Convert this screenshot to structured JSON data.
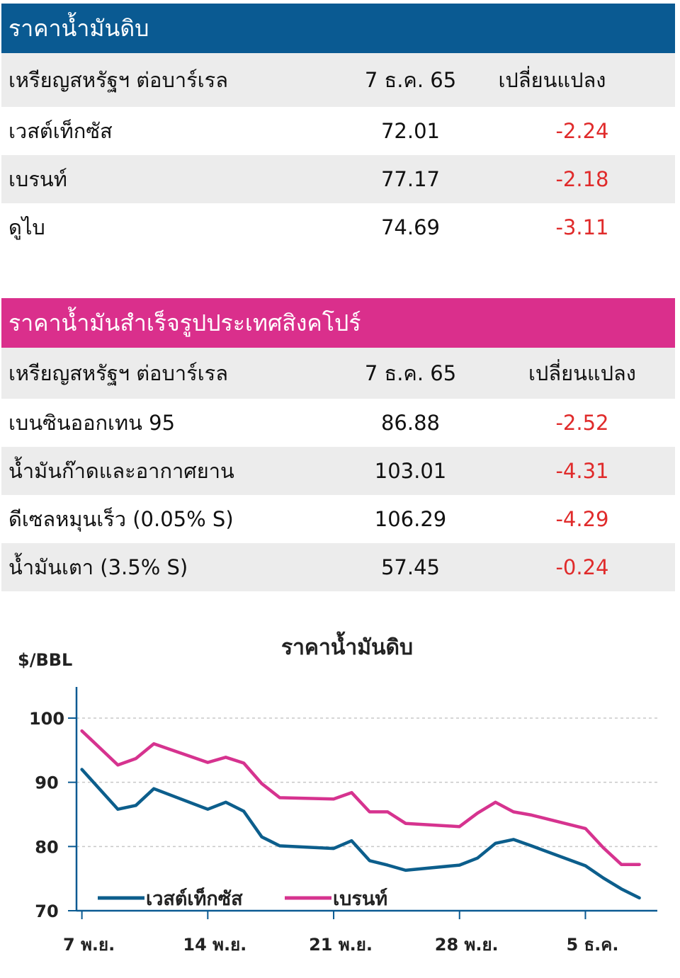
{
  "crude_table": {
    "title": "ราคาน้ำมันดิบ",
    "col_name": "เหรียญสหรัฐฯ ต่อบาร์เรล",
    "col_date": "7 ธ.ค. 65",
    "col_change": "เปลี่ยนแปลง",
    "rows": [
      {
        "name": "เวสต์เท็กซัส",
        "value": "72.01",
        "change": "-2.24"
      },
      {
        "name": "เบรนท์",
        "value": "77.17",
        "change": "-2.18"
      },
      {
        "name": "ดูไบ",
        "value": "74.69",
        "change": "-3.11"
      }
    ]
  },
  "refined_table": {
    "title": "ราคาน้ำมันสำเร็จรูปประเทศสิงคโปร์",
    "col_name": "เหรียญสหรัฐฯ ต่อบาร์เรล",
    "col_date": "7 ธ.ค. 65",
    "col_change": "เปลี่ยนแปลง",
    "rows": [
      {
        "name": "เบนซินออกเทน 95",
        "value": "86.88",
        "change": "-2.52"
      },
      {
        "name": "น้ำมันก๊าดและอากาศยาน",
        "value": "103.01",
        "change": "-4.31"
      },
      {
        "name": "ดีเซลหมุนเร็ว (0.05% S)",
        "value": "106.29",
        "change": "-4.29"
      },
      {
        "name": "น้ำมันเตา (3.5% S)",
        "value": "57.45",
        "change": "-0.24"
      }
    ]
  },
  "colors": {
    "blue_header": "#0a5a92",
    "pink_header": "#da2f8c",
    "negative": "#e02b2b",
    "wti_line": "#0c5e8c",
    "brent_line": "#d6338f"
  },
  "chart_data": {
    "type": "line",
    "title": "ราคาน้ำมันดิบ",
    "ylabel": "$/BBL",
    "ylim": [
      70,
      100
    ],
    "yticks": [
      100,
      90,
      80,
      70
    ],
    "xticks": [
      "7 พ.ย.",
      "14 พ.ย.",
      "21 พ.ย.",
      "28 พ.ย.",
      "5 ธ.ค."
    ],
    "xtick_pos": [
      0,
      7,
      14,
      21,
      28
    ],
    "xlim": [
      -0.3,
      32
    ],
    "grid": true,
    "legend_position": "bottom-left",
    "series": [
      {
        "name": "เวสต์เท็กซัส",
        "color": "#0c5e8c",
        "x": [
          0,
          2,
          3,
          4,
          7,
          8,
          9,
          10,
          11,
          14,
          15,
          16,
          17,
          18,
          21,
          22,
          23,
          24,
          25,
          28,
          29,
          30,
          31
        ],
        "y": [
          92,
          85.8,
          86.4,
          89,
          85.8,
          86.9,
          85.5,
          81.5,
          80.1,
          79.7,
          80.9,
          77.8,
          77.1,
          76.3,
          77.1,
          78.2,
          80.5,
          81.1,
          80.1,
          77.0,
          75.1,
          73.4,
          72.0
        ]
      },
      {
        "name": "เบรนท์",
        "color": "#d6338f",
        "x": [
          0,
          2,
          3,
          4,
          7,
          8,
          9,
          10,
          11,
          14,
          15,
          16,
          17,
          18,
          21,
          22,
          23,
          24,
          25,
          28,
          29,
          30,
          31
        ],
        "y": [
          98.0,
          92.7,
          93.7,
          96.0,
          93.1,
          93.9,
          93.0,
          89.8,
          87.6,
          87.4,
          88.4,
          85.4,
          85.4,
          83.6,
          83.1,
          85.2,
          86.9,
          85.4,
          84.9,
          82.8,
          79.8,
          77.2,
          77.2
        ]
      }
    ]
  }
}
